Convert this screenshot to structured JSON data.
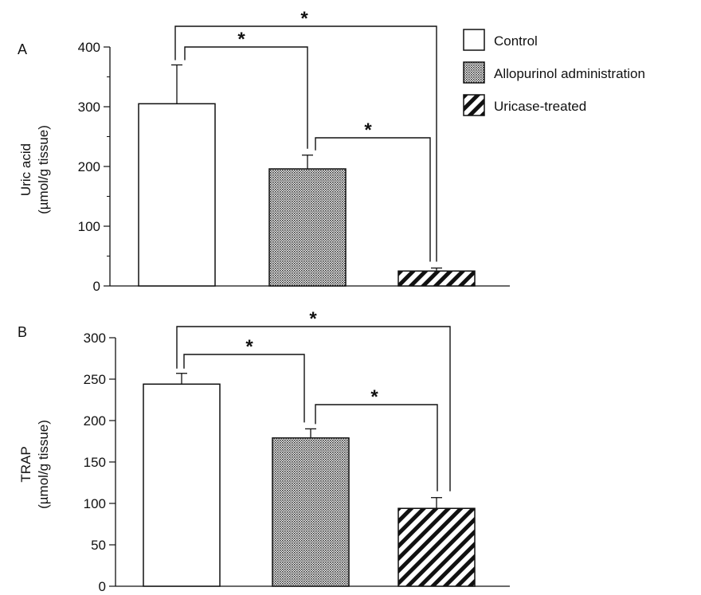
{
  "colors": {
    "ink": "#111111",
    "background": "#ffffff"
  },
  "legend": {
    "placement": "top-right",
    "items": [
      {
        "label": "Control",
        "pattern": "open"
      },
      {
        "label": "Allopurinol administration",
        "pattern": "dense-crosshatch"
      },
      {
        "label": "Uricase-treated",
        "pattern": "diagonal-hatch"
      }
    ]
  },
  "chart_data": [
    {
      "type": "bar",
      "panel_label": "A",
      "ylabel_lines": [
        "Uric acid",
        "(µmol/g tissue)"
      ],
      "ylim": [
        0,
        400
      ],
      "yticks": [
        0,
        100,
        200,
        300,
        400
      ],
      "ytick_labels": [
        "0",
        "100",
        "200",
        "300",
        "400"
      ],
      "minor_ticks": [
        50,
        150,
        250,
        350
      ],
      "categories": [
        "Control",
        "Allopurinol administration",
        "Uricase-treated"
      ],
      "values": [
        305,
        196,
        25
      ],
      "errors": [
        65,
        23,
        5
      ],
      "significance": [
        {
          "from": 0,
          "to": 1,
          "label": "*"
        },
        {
          "from": 1,
          "to": 2,
          "label": "*"
        },
        {
          "from": 0,
          "to": 2,
          "label": "*"
        }
      ]
    },
    {
      "type": "bar",
      "panel_label": "B",
      "ylabel_lines": [
        "TRAP",
        "(µmol/g tissue)"
      ],
      "ylim": [
        0,
        300
      ],
      "yticks": [
        0,
        50,
        100,
        150,
        200,
        250,
        300
      ],
      "ytick_labels": [
        "0",
        "50",
        "100",
        "150",
        "200",
        "250",
        "300"
      ],
      "minor_ticks": [],
      "categories": [
        "Control",
        "Allopurinol administration",
        "Uricase-treated"
      ],
      "values": [
        244,
        179,
        94
      ],
      "errors": [
        13,
        11,
        13
      ],
      "significance": [
        {
          "from": 0,
          "to": 1,
          "label": "*"
        },
        {
          "from": 1,
          "to": 2,
          "label": "*"
        },
        {
          "from": 0,
          "to": 2,
          "label": "*"
        }
      ]
    }
  ]
}
